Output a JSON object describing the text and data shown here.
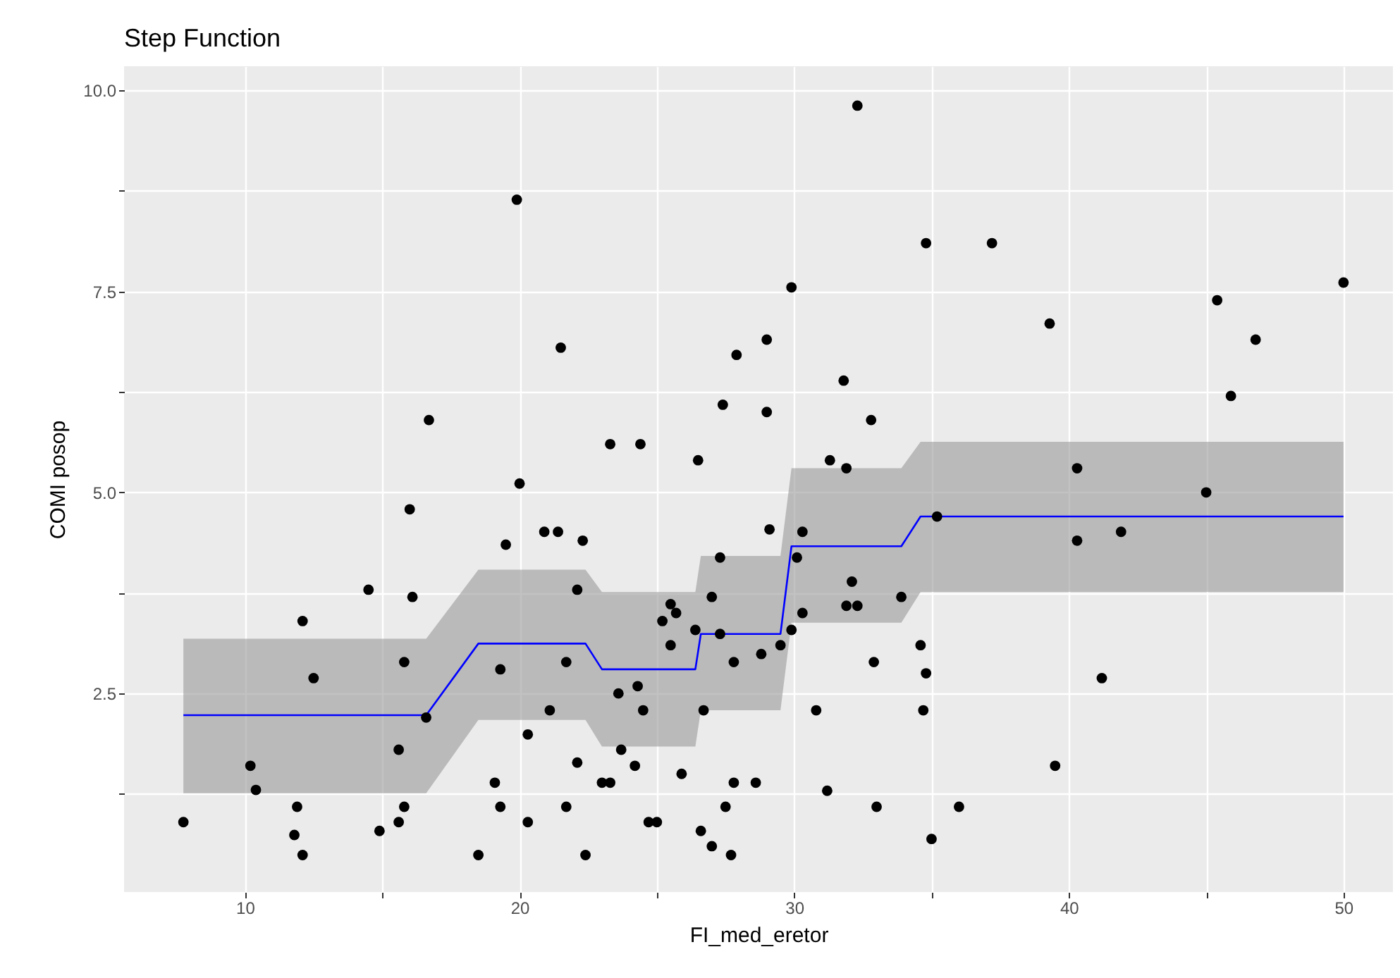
{
  "chart_data": {
    "type": "scatter",
    "title": "Step Function",
    "xlabel": "FI_med_eretor",
    "ylabel": "COMI posop",
    "xlim": [
      5.6,
      51.8
    ],
    "ylim": [
      0.03,
      10.3
    ],
    "xticks": [
      10,
      {
        "value": 15,
        "label": null
      },
      20,
      {
        "value": 25,
        "label": null
      },
      30,
      {
        "value": 35,
        "label": null
      },
      40,
      {
        "value": 45,
        "label": null
      },
      50
    ],
    "yticks": [
      {
        "value": 1.25,
        "label": null
      },
      2.5,
      {
        "value": 3.75,
        "label": null
      },
      {
        "value": 5,
        "label": "5.0"
      },
      {
        "value": 6.25,
        "label": null
      },
      7.5,
      {
        "value": 8.75,
        "label": null
      },
      {
        "value": 10,
        "label": "10.0"
      }
    ],
    "grid": true,
    "series": [
      {
        "marker": "circle",
        "color": "#000000",
        "x": [
          7.76,
          10.2,
          10.4,
          11.9,
          11.8,
          12.1,
          12.1,
          12.5,
          14.5,
          14.9,
          15.6,
          15.6,
          15.8,
          15.8,
          16.0,
          16.1,
          16.7,
          16.6,
          18.5,
          19.1,
          19.3,
          19.3,
          19.5,
          19.9,
          20.0,
          20.3,
          20.3,
          20.9,
          21.4,
          21.1,
          21.5,
          21.7,
          21.7,
          22.1,
          22.1,
          22.3,
          22.4,
          23.0,
          23.3,
          23.3,
          23.7,
          23.6,
          24.2,
          24.4,
          24.3,
          24.5,
          24.7,
          25.0,
          25.2,
          25.5,
          25.7,
          25.5,
          25.9,
          26.4,
          26.5,
          26.6,
          26.7,
          27.0,
          27.0,
          27.3,
          27.4,
          27.3,
          27.5,
          27.7,
          27.8,
          27.8,
          27.9,
          28.6,
          28.8,
          29.0,
          29.0,
          29.1,
          29.5,
          29.9,
          29.9,
          30.1,
          30.3,
          30.3,
          30.8,
          31.2,
          31.3,
          31.8,
          31.9,
          32.1,
          31.9,
          32.3,
          32.3,
          32.8,
          32.9,
          33.0,
          33.9,
          34.6,
          34.8,
          34.7,
          34.8,
          35.0,
          35.2,
          36.0,
          37.2,
          39.3,
          39.5,
          40.3,
          40.3,
          41.2,
          41.9,
          45.0,
          45.4,
          45.9,
          46.8,
          50.0
        ],
        "values": [
          0.9,
          1.6,
          1.3,
          1.09,
          0.74,
          0.49,
          3.4,
          2.69,
          3.79,
          0.79,
          1.8,
          0.9,
          1.09,
          2.89,
          4.79,
          3.7,
          5.9,
          2.2,
          0.49,
          1.39,
          1.09,
          2.8,
          4.35,
          8.64,
          5.11,
          1.99,
          0.9,
          4.51,
          4.51,
          2.29,
          6.8,
          1.09,
          2.89,
          3.79,
          1.64,
          4.4,
          0.49,
          1.39,
          1.39,
          5.6,
          1.8,
          2.5,
          1.6,
          5.6,
          2.59,
          2.29,
          0.9,
          0.9,
          3.4,
          3.61,
          3.5,
          3.1,
          1.5,
          3.29,
          5.4,
          0.79,
          2.29,
          3.7,
          0.6,
          4.19,
          6.09,
          3.24,
          1.09,
          0.49,
          2.89,
          1.39,
          6.71,
          1.39,
          2.99,
          6.0,
          6.9,
          4.54,
          3.1,
          3.29,
          7.55,
          4.19,
          4.51,
          3.5,
          2.29,
          1.29,
          5.4,
          6.39,
          5.3,
          3.89,
          3.59,
          3.59,
          9.81,
          5.9,
          2.89,
          1.09,
          3.7,
          3.1,
          2.75,
          2.29,
          8.1,
          0.69,
          4.7,
          1.09,
          8.1,
          7.1,
          1.6,
          5.3,
          4.4,
          2.69,
          4.51,
          5.0,
          7.39,
          6.2,
          6.9,
          7.61
        ]
      },
      {
        "type": "line",
        "color": "#0000ff",
        "x": [
          7.76,
          16.6,
          18.5,
          22.4,
          23.0,
          26.4,
          26.6,
          29.5,
          29.9,
          33.9,
          34.6,
          50.0
        ],
        "values": [
          2.23,
          2.23,
          3.12,
          3.12,
          2.8,
          2.8,
          3.24,
          3.24,
          4.33,
          4.33,
          4.7,
          4.7
        ],
        "lower": [
          1.26,
          1.26,
          2.17,
          2.17,
          1.84,
          1.84,
          2.29,
          2.29,
          3.38,
          3.38,
          3.76,
          3.76
        ],
        "upper": [
          3.18,
          3.18,
          4.04,
          4.04,
          3.76,
          3.76,
          4.21,
          4.21,
          5.3,
          5.3,
          5.63,
          5.63
        ]
      }
    ]
  }
}
